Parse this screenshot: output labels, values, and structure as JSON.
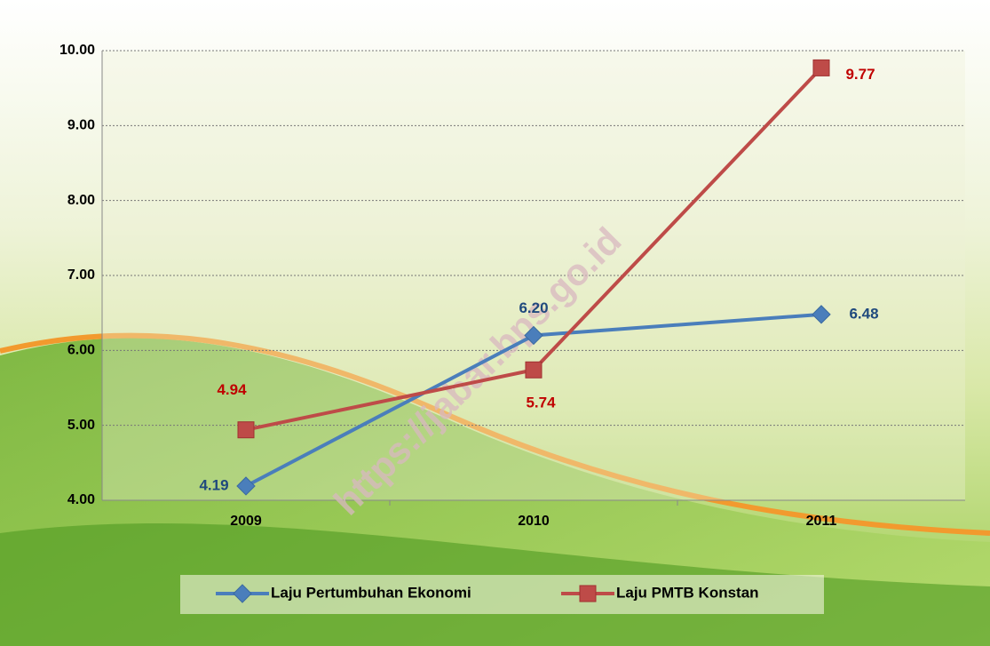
{
  "chart_data": {
    "type": "line",
    "categories": [
      "2009",
      "2010",
      "2011"
    ],
    "series": [
      {
        "name": "Laju Pertumbuhan Ekonomi",
        "color": "#4a7ebb",
        "label_color": "#1f497d",
        "marker": "diamond",
        "values": [
          4.19,
          6.2,
          6.48
        ],
        "value_labels": [
          "4.19",
          "6.20",
          "6.48"
        ]
      },
      {
        "name": "Laju PMTB Konstan",
        "color": "#be4b48",
        "label_color": "#c00000",
        "marker": "square",
        "values": [
          4.94,
          5.74,
          9.77
        ],
        "value_labels": [
          "4.94",
          "5.74",
          "9.77"
        ]
      }
    ],
    "ylim": [
      4,
      10
    ],
    "yticks": [
      {
        "value": 4,
        "label": "4.00"
      },
      {
        "value": 5,
        "label": "5.00"
      },
      {
        "value": 6,
        "label": "6.00"
      },
      {
        "value": 7,
        "label": "7.00"
      },
      {
        "value": 8,
        "label": "8.00"
      },
      {
        "value": 9,
        "label": "9.00"
      },
      {
        "value": 10,
        "label": "10.00"
      }
    ],
    "grid": true,
    "legend": "bottom",
    "watermark": "https://jabar.bps.go.id"
  }
}
